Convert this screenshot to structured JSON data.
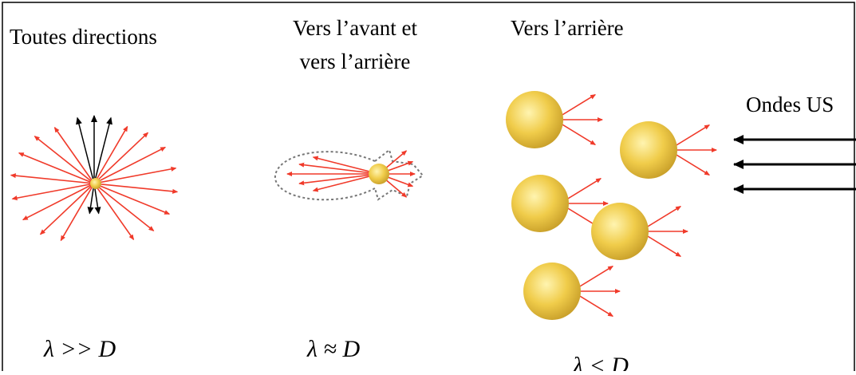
{
  "panels": [
    {
      "title": [
        "Toutes directions"
      ],
      "condition": "λ >> D"
    },
    {
      "title": [
        "Vers l’avant et",
        "vers l’arrière"
      ],
      "condition": "λ ≈ D"
    },
    {
      "title": [
        "Vers l’arrière"
      ],
      "condition": "λ < D"
    }
  ],
  "wave_label": "Ondes US"
}
